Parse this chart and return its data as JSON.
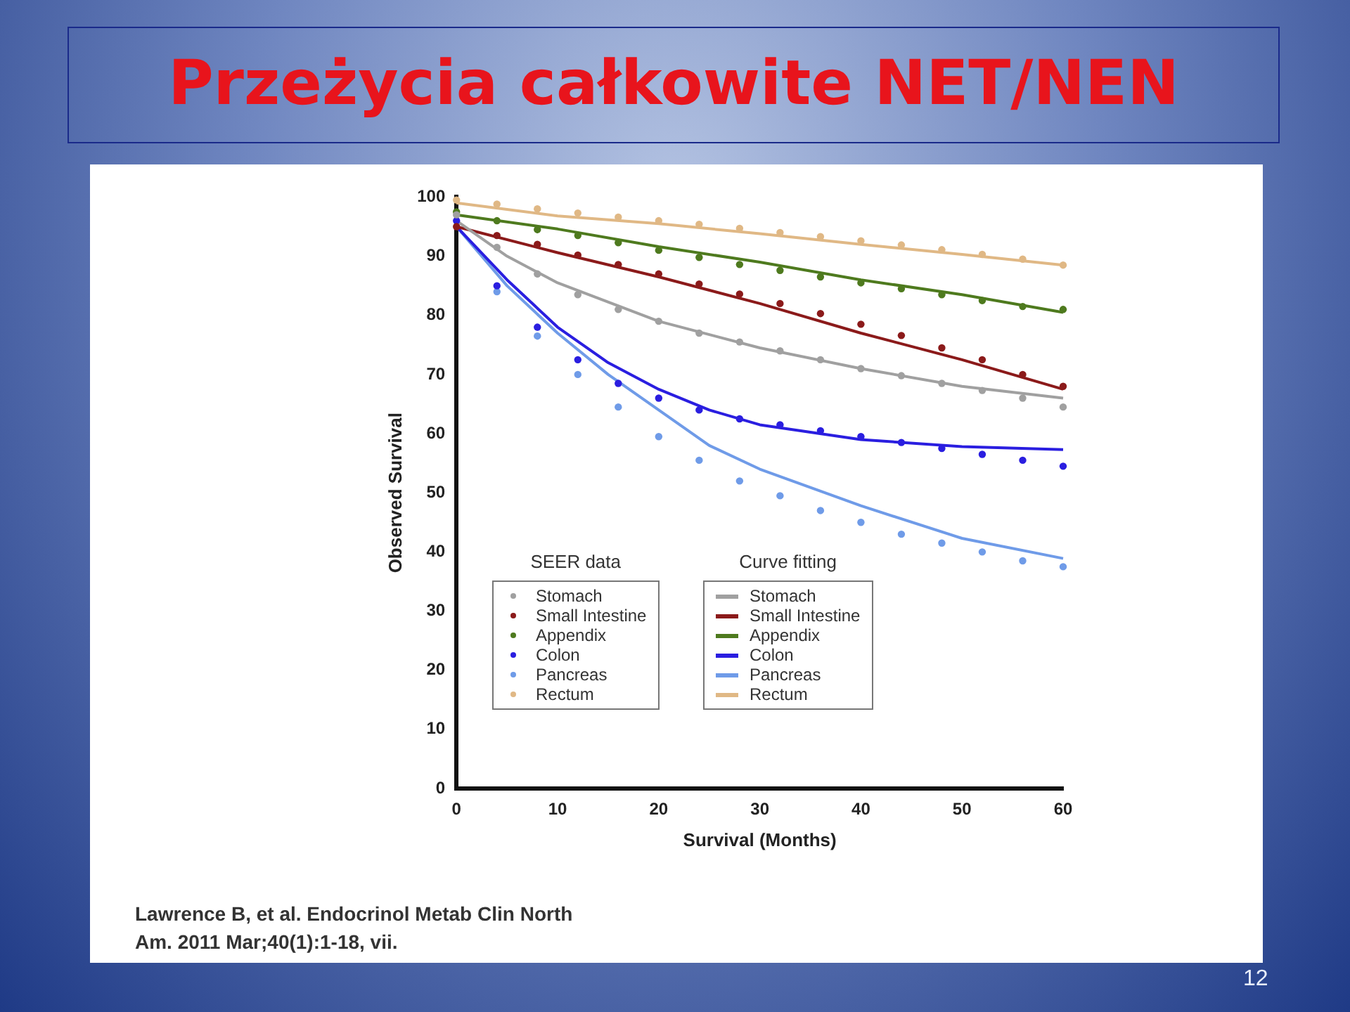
{
  "chart_data": {
    "type": "scatter",
    "title": "Przeżycia całkowite NET/NEN",
    "xlabel": "Survival (Months)",
    "ylabel": "Observed Survival",
    "xlim": [
      0,
      60
    ],
    "xticks": [
      0,
      10,
      20,
      30,
      40,
      50,
      60
    ],
    "ylim": [
      0,
      100
    ],
    "yticks": [
      0,
      10,
      20,
      30,
      40,
      50,
      60,
      70,
      80,
      90,
      100
    ],
    "grid": false,
    "legend": "bottom",
    "annotations": [
      "SEER data",
      "Curve fitting",
      "Lawrence B, et al. Endocrinol Metab Clin North Am. 2011 Mar;40(1):1-18, vii.",
      "12"
    ],
    "series": [
      {
        "marker": "circle",
        "name": "Stomach",
        "color": "#a0a0a0",
        "x": [
          0,
          4,
          8,
          12,
          16,
          20,
          24,
          28,
          32,
          36,
          40,
          44,
          48,
          52,
          56,
          60
        ],
        "values": [
          97,
          91.5,
          87,
          83.5,
          81,
          79,
          77,
          75.5,
          74,
          72.5,
          71,
          69.8,
          68.5,
          67.3,
          66,
          64.5
        ]
      },
      {
        "marker": "circle",
        "name": "Small Intestine",
        "color": "#8b1a1a",
        "x": [
          0,
          4,
          8,
          12,
          16,
          20,
          24,
          28,
          32,
          36,
          40,
          44,
          48,
          52,
          56,
          60
        ],
        "values": [
          95,
          93.5,
          92,
          90.2,
          88.6,
          87,
          85.3,
          83.6,
          82,
          80.3,
          78.5,
          76.6,
          74.5,
          72.5,
          70,
          68
        ]
      },
      {
        "marker": "circle",
        "name": "Appendix",
        "color": "#4e7a1e",
        "x": [
          0,
          4,
          8,
          12,
          16,
          20,
          24,
          28,
          32,
          36,
          40,
          44,
          48,
          52,
          56,
          60
        ],
        "values": [
          97.5,
          96,
          94.5,
          93.5,
          92.3,
          91,
          89.8,
          88.6,
          87.6,
          86.5,
          85.5,
          84.5,
          83.5,
          82.5,
          81.5,
          81
        ]
      },
      {
        "marker": "circle",
        "name": "Colon",
        "color": "#2a1ee0",
        "x": [
          0,
          4,
          8,
          12,
          16,
          20,
          24,
          28,
          32,
          36,
          40,
          44,
          48,
          52,
          56,
          60
        ],
        "values": [
          96,
          85,
          78,
          72.5,
          68.5,
          66,
          64,
          62.5,
          61.5,
          60.5,
          59.5,
          58.5,
          57.5,
          56.5,
          55.5,
          54.5
        ]
      },
      {
        "marker": "circle",
        "name": "Pancreas",
        "color": "#6f9be8",
        "x": [
          4,
          8,
          12,
          16,
          20,
          24,
          28,
          32,
          36,
          40,
          44,
          48,
          52,
          56,
          60
        ],
        "values": [
          84,
          76.5,
          70,
          64.5,
          59.5,
          55.5,
          52,
          49.5,
          47,
          45,
          43,
          41.5,
          40,
          38.5,
          37.5
        ]
      },
      {
        "marker": "circle",
        "name": "Rectum",
        "color": "#e0b885",
        "x": [
          0,
          4,
          8,
          12,
          16,
          20,
          24,
          28,
          32,
          36,
          40,
          44,
          48,
          52,
          56,
          60
        ],
        "values": [
          99.5,
          98.8,
          98,
          97.3,
          96.6,
          96,
          95.4,
          94.7,
          94,
          93.3,
          92.6,
          91.9,
          91.1,
          90.3,
          89.5,
          88.5
        ]
      },
      {
        "type": "line",
        "name": "Stomach",
        "color": "#a0a0a0",
        "x": [
          0,
          5,
          10,
          20,
          30,
          40,
          50,
          60
        ],
        "values": [
          96,
          90,
          85.5,
          79,
          74.5,
          71,
          68,
          66
        ]
      },
      {
        "type": "line",
        "name": "Small Intestine",
        "color": "#8b1a1a",
        "x": [
          0,
          10,
          20,
          30,
          40,
          50,
          60
        ],
        "values": [
          95,
          90.6,
          86.5,
          82,
          77,
          72.5,
          67.5
        ]
      },
      {
        "type": "line",
        "name": "Appendix",
        "color": "#4e7a1e",
        "x": [
          0,
          10,
          20,
          30,
          40,
          50,
          60
        ],
        "values": [
          97,
          94.6,
          91.6,
          89,
          86,
          83.5,
          80.5
        ]
      },
      {
        "type": "line",
        "name": "Colon",
        "color": "#2a1ee0",
        "x": [
          0,
          5,
          10,
          15,
          20,
          25,
          30,
          40,
          50,
          60
        ],
        "values": [
          95,
          86,
          78,
          72,
          67.5,
          64,
          61.5,
          59,
          57.8,
          57.3
        ]
      },
      {
        "type": "line",
        "name": "Pancreas",
        "color": "#6f9be8",
        "x": [
          0,
          5,
          10,
          15,
          20,
          25,
          30,
          40,
          50,
          60
        ],
        "values": [
          95,
          85,
          77,
          70,
          64,
          58,
          54,
          47.8,
          42.3,
          38.9
        ]
      },
      {
        "type": "line",
        "name": "Rectum",
        "color": "#e0b885",
        "x": [
          0,
          10,
          20,
          30,
          40,
          50,
          60
        ],
        "values": [
          99,
          96.8,
          95.5,
          93.8,
          92,
          90.3,
          88.5
        ]
      }
    ]
  }
}
